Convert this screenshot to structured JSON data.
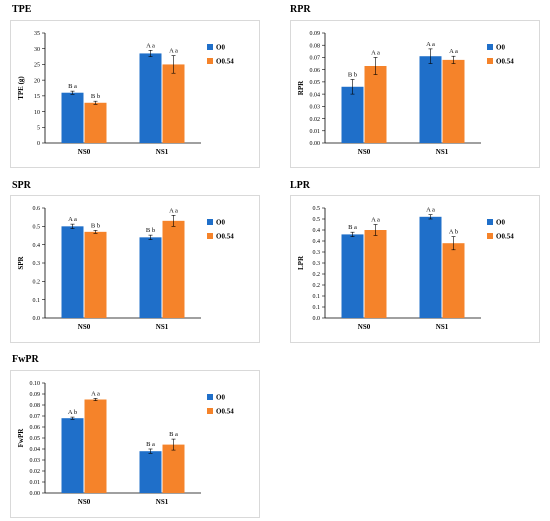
{
  "colors": {
    "series1": "#1f6fc9",
    "series2": "#f5832a",
    "axis": "#000000",
    "error_bar": "#000000"
  },
  "chart_data": [
    {
      "type": "bar",
      "title": "TPE",
      "ylabel": "TPE (g)",
      "categories": [
        "NS0",
        "NS1"
      ],
      "ylim": [
        0,
        35
      ],
      "ytick_step": 5,
      "ytick_decimals": 0,
      "legend": [
        "O0",
        "O0.54"
      ],
      "series": [
        {
          "name": "O0",
          "values": [
            16.0,
            28.5
          ],
          "errors": [
            0.5,
            1.0
          ],
          "labels": [
            "B a",
            "A a"
          ]
        },
        {
          "name": "O0.54",
          "values": [
            12.8,
            25.0
          ],
          "errors": [
            0.5,
            2.8
          ],
          "labels": [
            "B b",
            "A a"
          ]
        }
      ]
    },
    {
      "type": "bar",
      "title": "RPR",
      "ylabel": "RPR",
      "categories": [
        "NS0",
        "NS1"
      ],
      "ylim": [
        0,
        0.09
      ],
      "ytick_step": 0.01,
      "ytick_decimals": 2,
      "legend": [
        "O0",
        "O0.54"
      ],
      "series": [
        {
          "name": "O0",
          "values": [
            0.046,
            0.071
          ],
          "errors": [
            0.006,
            0.006
          ],
          "labels": [
            "B b",
            "A a"
          ]
        },
        {
          "name": "O0.54",
          "values": [
            0.063,
            0.068
          ],
          "errors": [
            0.007,
            0.003
          ],
          "labels": [
            "A a",
            "A a"
          ]
        }
      ]
    },
    {
      "type": "bar",
      "title": "SPR",
      "ylabel": "SPR",
      "categories": [
        "NS0",
        "NS1"
      ],
      "ylim": [
        0,
        0.6
      ],
      "ytick_step": 0.1,
      "ytick_decimals": 1,
      "legend": [
        "O0",
        "O0.54"
      ],
      "series": [
        {
          "name": "O0",
          "values": [
            0.5,
            0.44
          ],
          "errors": [
            0.012,
            0.012
          ],
          "labels": [
            "A a",
            "B b"
          ]
        },
        {
          "name": "O0.54",
          "values": [
            0.47,
            0.53
          ],
          "errors": [
            0.008,
            0.03
          ],
          "labels": [
            "B b",
            "A a"
          ]
        }
      ]
    },
    {
      "type": "bar",
      "title": "LPR",
      "ylabel": "LPR",
      "categories": [
        "NS0",
        "NS1"
      ],
      "ylim": [
        0,
        0.5
      ],
      "ytick_step": 0.05,
      "ytick_decimals": 2,
      "ytick_labels": [
        "0.0",
        "0.1",
        "0.1",
        "0.2",
        "0.2",
        "0.3",
        "0.3",
        "0.4",
        "0.4",
        "0.5",
        "0.5"
      ],
      "legend": [
        "O0",
        "O0.54"
      ],
      "series": [
        {
          "name": "O0",
          "values": [
            0.38,
            0.46
          ],
          "errors": [
            0.01,
            0.01
          ],
          "labels": [
            "B a",
            "A a"
          ]
        },
        {
          "name": "O0.54",
          "values": [
            0.4,
            0.34
          ],
          "errors": [
            0.025,
            0.03
          ],
          "labels": [
            "A a",
            "A b"
          ]
        }
      ]
    },
    {
      "type": "bar",
      "title": "FwPR",
      "ylabel": "FwPR",
      "categories": [
        "NS0",
        "NS1"
      ],
      "ylim": [
        0,
        0.1
      ],
      "ytick_step": 0.01,
      "ytick_decimals": 2,
      "legend": [
        "O0",
        "O0.54"
      ],
      "series": [
        {
          "name": "O0",
          "values": [
            0.068,
            0.038
          ],
          "errors": [
            0.001,
            0.002
          ],
          "labels": [
            "A b",
            "B a"
          ]
        },
        {
          "name": "O0.54",
          "values": [
            0.085,
            0.044
          ],
          "errors": [
            0.001,
            0.005
          ],
          "labels": [
            "A a",
            "B a"
          ]
        }
      ]
    }
  ]
}
